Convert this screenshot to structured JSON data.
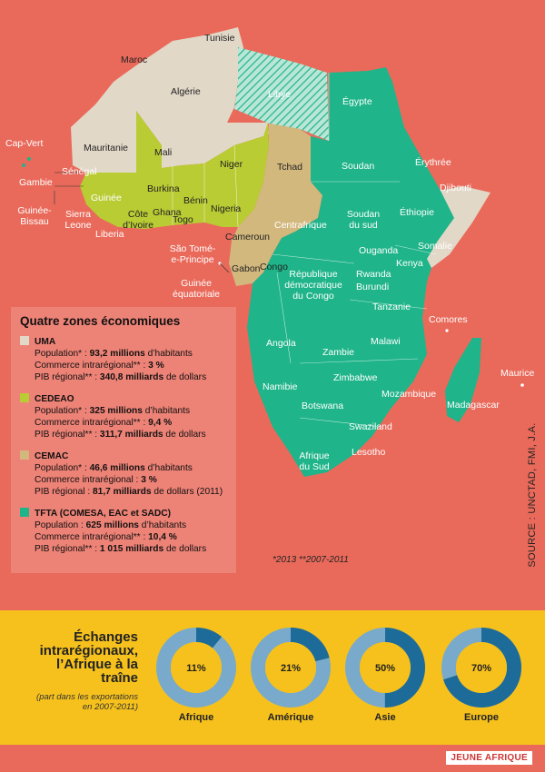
{
  "colors": {
    "background": "#e96a5b",
    "uma": "#e2d8c8",
    "cedeao": "#b9cc34",
    "cemac": "#d3b87e",
    "tfta": "#1fb489",
    "panel": "#f6c11c",
    "donut_light": "#79aacb",
    "donut_dark": "#1d6b99"
  },
  "countries": {
    "tunisie": "Tunisie",
    "maroc": "Maroc",
    "algerie": "Algérie",
    "libye": "Libye",
    "egypte": "Égypte",
    "mauritanie": "Mauritanie",
    "mali": "Mali",
    "niger": "Niger",
    "tchad": "Tchad",
    "soudan": "Soudan",
    "erythree": "Érythrée",
    "djibouti": "Djibouti",
    "cap_vert": "Cap-Vert",
    "senegal": "Sénégal",
    "gambie": "Gambie",
    "guinee_bissau": "Guinée-\nBissau",
    "guinee": "Guinée",
    "burkina": "Burkina",
    "benin": "Bénin",
    "nigeria": "Nigeria",
    "sierra_leone": "Sierra\nLeone",
    "liberia": "Liberia",
    "cote_ivoire": "Côte\nd’Ivoire",
    "ghana": "Ghana",
    "togo": "Togo",
    "centrafrique": "Centrafrique",
    "soudan_sud": "Soudan\ndu sud",
    "ethiopie": "Éthiopie",
    "somalie": "Somalie",
    "cameroun": "Cameroun",
    "sao_tome": "São Tomé-\ne-Principe",
    "gabon": "Gabon",
    "congo": "Congo",
    "guinee_eq": "Guinée\néquatoriale",
    "ouganda": "Ouganda",
    "kenya": "Kenya",
    "rdc": "République\ndémocratique\ndu Congo",
    "rwanda": "Rwanda",
    "burundi": "Burundi",
    "tanzanie": "Tanzanie",
    "comores": "Comores",
    "angola": "Angola",
    "zambie": "Zambie",
    "malawi": "Malawi",
    "zimbabwe": "Zimbabwe",
    "namibie": "Namibie",
    "mozambique": "Mozambique",
    "madagascar": "Madagascar",
    "maurice": "Maurice",
    "botswana": "Botswana",
    "swaziland": "Swaziland",
    "lesotho": "Lesotho",
    "afrique_sud": "Afrique\ndu Sud"
  },
  "legend": {
    "title": "Quatre zones économiques",
    "zones": [
      {
        "name": "UMA",
        "lines": [
          {
            "label": "Population* : ",
            "value": "93,2 millions",
            "suffix": " d’habitants"
          },
          {
            "label": "Commerce intrarégional** : ",
            "value": "3 %",
            "suffix": ""
          },
          {
            "label": "PIB régional** : ",
            "value": "340,8 milliards",
            "suffix": " de dollars"
          }
        ]
      },
      {
        "name": "CEDEAO",
        "lines": [
          {
            "label": "Population* : ",
            "value": "325 millions",
            "suffix": " d’habitants"
          },
          {
            "label": "Commerce intrarégional** : ",
            "value": "9,4 %",
            "suffix": ""
          },
          {
            "label": "PIB régional** : ",
            "value": "311,7 milliards",
            "suffix": " de dollars"
          }
        ]
      },
      {
        "name": "CEMAC",
        "lines": [
          {
            "label": "Population* : ",
            "value": "46,6 millions",
            "suffix": " d’habitants"
          },
          {
            "label": "Commerce intrarégional : ",
            "value": "3 %",
            "suffix": ""
          },
          {
            "label": "PIB régional : ",
            "value": "81,7 milliards",
            "suffix": " de dollars (2011)"
          }
        ]
      },
      {
        "name": "TFTA (COMESA, EAC et SADC)",
        "lines": [
          {
            "label": "Population : ",
            "value": "625 millions",
            "suffix": " d’habitants"
          },
          {
            "label": "Commerce intrarégional** : ",
            "value": "10,4 %",
            "suffix": ""
          },
          {
            "label": "PIB régional** : ",
            "value": "1 015 milliards",
            "suffix": " de dollars"
          }
        ]
      }
    ],
    "footnote": "*2013 **2007-2011"
  },
  "source": "SOURCE : UNCTAD, FMI, J.A.",
  "panel": {
    "title": "Échanges\nintrarégionaux,\nl’Afrique à la\ntraîne",
    "subtitle": "(part dans les exportations\nen 2007-2011)"
  },
  "chart_data": {
    "type": "pie",
    "categories": [
      "Afrique",
      "Amérique",
      "Asie",
      "Europe"
    ],
    "values": [
      11,
      21,
      50,
      70
    ],
    "value_labels": [
      "11%",
      "21%",
      "50%",
      "70%"
    ],
    "unit": "%"
  },
  "brand": "JEUNE AFRIQUE"
}
